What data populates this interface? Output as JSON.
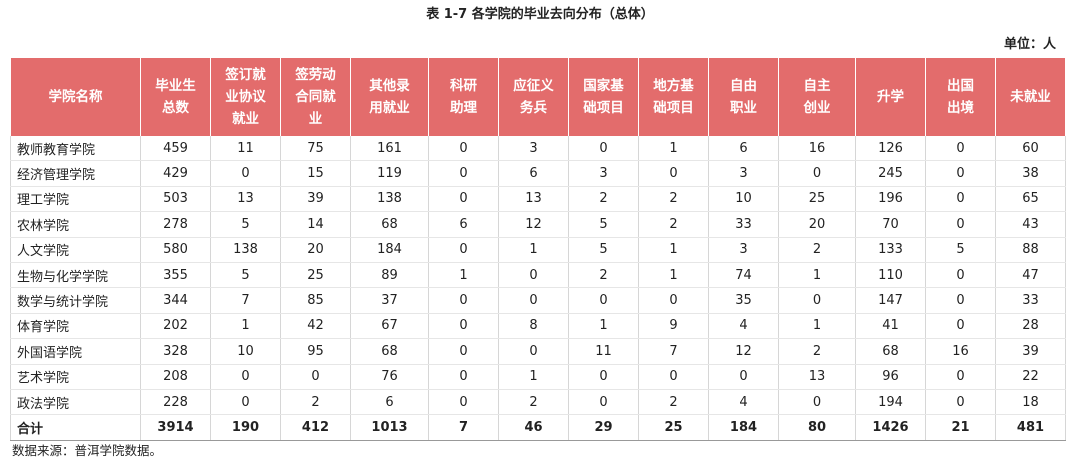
{
  "header": {
    "title": "表 1-7 各学院的毕业去向分布（总体）",
    "unit": "单位：人"
  },
  "table": {
    "columns": [
      "学院名称",
      "毕业生\n总数",
      "签订就\n业协议\n就业",
      "签劳动\n合同就\n业",
      "其他录\n用就业",
      "科研\n助理",
      "应征义\n务兵",
      "国家基\n础项目",
      "地方基\n础项目",
      "自由\n职业",
      "自主\n创业",
      "升学",
      "出国\n出境",
      "未就业"
    ],
    "rows": [
      [
        "教师教育学院",
        459,
        11,
        75,
        161,
        0,
        3,
        0,
        1,
        6,
        16,
        126,
        0,
        60
      ],
      [
        "经济管理学院",
        429,
        0,
        15,
        119,
        0,
        6,
        3,
        0,
        3,
        0,
        245,
        0,
        38
      ],
      [
        "理工学院",
        503,
        13,
        39,
        138,
        0,
        13,
        2,
        2,
        10,
        25,
        196,
        0,
        65
      ],
      [
        "农林学院",
        278,
        5,
        14,
        68,
        6,
        12,
        5,
        2,
        33,
        20,
        70,
        0,
        43
      ],
      [
        "人文学院",
        580,
        138,
        20,
        184,
        0,
        1,
        5,
        1,
        3,
        2,
        133,
        5,
        88
      ],
      [
        "生物与化学学院",
        355,
        5,
        25,
        89,
        1,
        0,
        2,
        1,
        74,
        1,
        110,
        0,
        47
      ],
      [
        "数学与统计学院",
        344,
        7,
        85,
        37,
        0,
        0,
        0,
        0,
        35,
        0,
        147,
        0,
        33
      ],
      [
        "体育学院",
        202,
        1,
        42,
        67,
        0,
        8,
        1,
        9,
        4,
        1,
        41,
        0,
        28
      ],
      [
        "外国语学院",
        328,
        10,
        95,
        68,
        0,
        0,
        11,
        7,
        12,
        2,
        68,
        16,
        39
      ],
      [
        "艺术学院",
        208,
        0,
        0,
        76,
        0,
        1,
        0,
        0,
        0,
        13,
        96,
        0,
        22
      ],
      [
        "政法学院",
        228,
        0,
        2,
        6,
        0,
        2,
        0,
        2,
        4,
        0,
        194,
        0,
        18
      ]
    ],
    "total": [
      "合计",
      3914,
      190,
      412,
      1013,
      7,
      46,
      29,
      25,
      184,
      80,
      1426,
      21,
      481
    ]
  },
  "footer": {
    "source": "数据来源：普洱学院数据。"
  }
}
